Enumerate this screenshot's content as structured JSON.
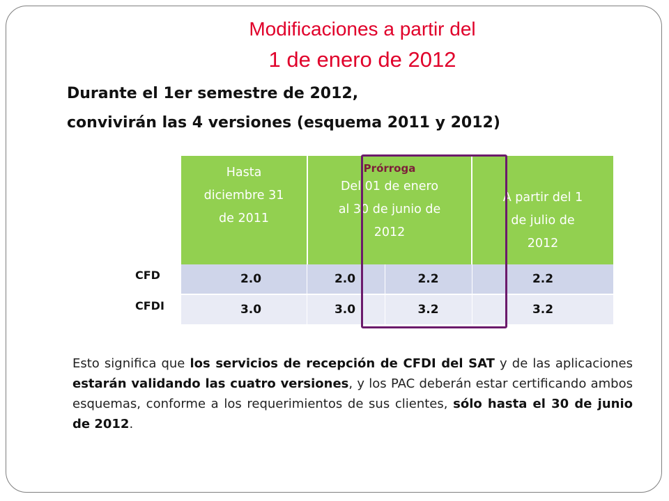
{
  "title": {
    "line1": "Modificaciones a partir del",
    "line2": "1 de enero de 2012"
  },
  "subtitle": {
    "line1": "Durante el 1er semestre de 2012,",
    "line2": "convivirán las 4 versiones (esquema 2011 y 2012)"
  },
  "table": {
    "headers": [
      {
        "lines": [
          "Hasta",
          "diciembre 31",
          "de 2011"
        ]
      },
      {
        "tag": "Prórroga",
        "lines": [
          "Del 01 de enero",
          "al 30 de junio de",
          "2012"
        ]
      },
      {
        "lines": [
          "A partir del 1",
          "de julio de",
          "2012"
        ]
      }
    ],
    "rows": [
      {
        "label": "CFD",
        "values": [
          "2.0",
          "2.0",
          "2.2",
          "2.2"
        ]
      },
      {
        "label": "CFDI",
        "values": [
          "3.0",
          "3.0",
          "3.2",
          "3.2"
        ]
      }
    ]
  },
  "paragraph": {
    "p1": "Esto significa que ",
    "b1": "los servicios de recepción de CFDI del SAT",
    "p2": " y de las aplicaciones ",
    "b2": "estarán validando las cuatro versiones",
    "p3": ", y los PAC deberán estar certificando ambos esquemas, conforme a los requerimientos de sus clientes, ",
    "b3": "sólo hasta el 30 de junio de 2012",
    "p4": "."
  },
  "colors": {
    "title": "#e0002a",
    "header_bg": "#92d050",
    "row1_bg": "#cfd5ea",
    "row2_bg": "#e9ebf5",
    "highlight_border": "#6b1a6b",
    "prorroga_text": "#7d1f3a"
  }
}
